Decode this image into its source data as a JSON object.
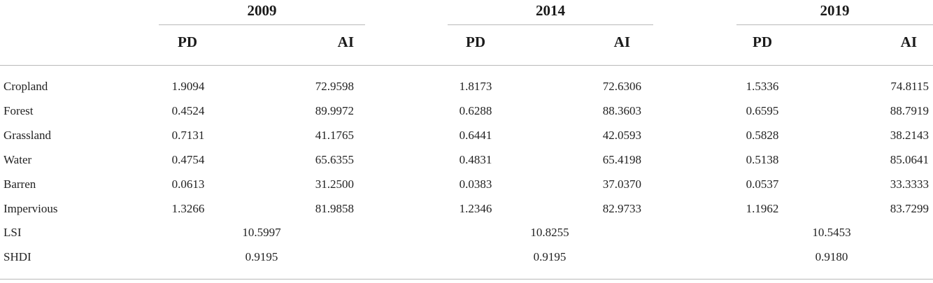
{
  "years": [
    "2009",
    "2014",
    "2019"
  ],
  "subheaders": {
    "pd": "PD",
    "ai": "AI"
  },
  "rows": [
    {
      "label": "Cropland",
      "values": [
        [
          "1.9094",
          "72.9598"
        ],
        [
          "1.8173",
          "72.6306"
        ],
        [
          "1.5336",
          "74.8115"
        ]
      ]
    },
    {
      "label": "Forest",
      "values": [
        [
          "0.4524",
          "89.9972"
        ],
        [
          "0.6288",
          "88.3603"
        ],
        [
          "0.6595",
          "88.7919"
        ]
      ]
    },
    {
      "label": "Grassland",
      "values": [
        [
          "0.7131",
          "41.1765"
        ],
        [
          "0.6441",
          "42.0593"
        ],
        [
          "0.5828",
          "38.2143"
        ]
      ]
    },
    {
      "label": "Water",
      "values": [
        [
          "0.4754",
          "65.6355"
        ],
        [
          "0.4831",
          "65.4198"
        ],
        [
          "0.5138",
          "85.0641"
        ]
      ]
    },
    {
      "label": "Barren",
      "values": [
        [
          "0.0613",
          "31.2500"
        ],
        [
          "0.0383",
          "37.0370"
        ],
        [
          "0.0537",
          "33.3333"
        ]
      ]
    },
    {
      "label": "Impervious",
      "values": [
        [
          "1.3266",
          "81.9858"
        ],
        [
          "1.2346",
          "82.9733"
        ],
        [
          "1.1962",
          "83.7299"
        ]
      ]
    }
  ],
  "span_rows": [
    {
      "label": "LSI",
      "values": [
        "10.5997",
        "10.8255",
        "10.5453"
      ]
    },
    {
      "label": "SHDI",
      "values": [
        "0.9195",
        "0.9195",
        "0.9180"
      ]
    }
  ]
}
